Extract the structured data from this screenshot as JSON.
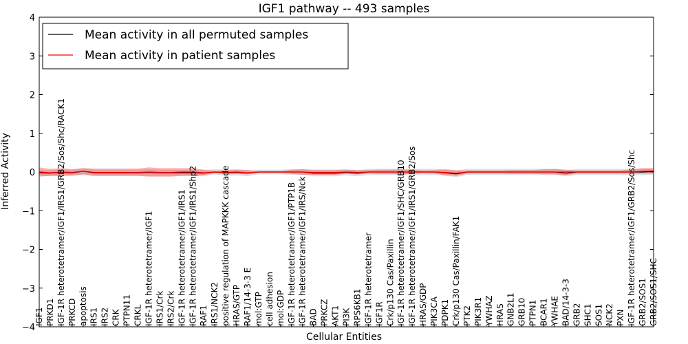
{
  "chart_data": {
    "type": "line",
    "title": "IGF1 pathway -- 493 samples",
    "xlabel": "Cellular Entities",
    "ylabel": "Inferred Activity",
    "ylim": [
      -4,
      4
    ],
    "yticks": [
      -4,
      -3,
      -2,
      -1,
      0,
      1,
      2,
      3,
      4
    ],
    "ytick_labels": [
      "−4",
      "−3",
      "−2",
      "−1",
      "0",
      "1",
      "2",
      "3",
      "4"
    ],
    "legend_position": "top-left",
    "categories": [
      "IGF1",
      "PRKD1",
      "IGF-1R heterotetramer/IGF1/IRS1/GRB2/Sos/Shc/RACK1",
      "PRKCD",
      "apoptosis",
      "IRS1",
      "IRS2",
      "CRK",
      "PTPN11",
      "CRKL",
      "IGF-1R heterotetramer/IGF1",
      "IRS1/Crk",
      "IRS2/Crk",
      "IGF-1R heterotetramer/IGF1/IRS1",
      "IGF-1R heterotetramer/IGF1/IRS1/Shp2",
      "RAF1",
      "IRS1/NCK2",
      "positive regulation of MAPKKK cascade",
      "HRAS/GTP",
      "RAF1/14-3-3 E",
      "mol:GTP",
      "cell adhesion",
      "mol:GDP",
      "IGF-1R heterotetramer/IGF1/PTP1B",
      "IGF-1R heterotetramer/IGF1/IRS/Nck",
      "BAD",
      "PRKCZ",
      "AKT1",
      "PI3K",
      "RPS6KB1",
      "IGF-1R heterotetramer",
      "IGF1R",
      "Crk/p130 Cas/Paxillin",
      "IGF-1R heterotetramer/IGF1/SHC/GRB10",
      "IGF-1R heterotetramer/IGF1/IRS1/GRB2/Sos",
      "HRAS/GDP",
      "PIK3CA",
      "PDPK1",
      "Crk/p130 Cas/Paxillin/FAK1",
      "PTK2",
      "PIK3R1",
      "YWHAZ",
      "HRAS",
      "GNB2L1",
      "GRB10",
      "PTPN1",
      "BCAR1",
      "YWHAE",
      "BAD/14-3-3",
      "GRB2",
      "SHC1",
      "SOS1",
      "NCK2",
      "PXN",
      "IGF-1R heterotetramer/IGF1/GRB2/Sos/Shc",
      "GRB2/SOS1",
      "GRB2/SOS1/SHC"
    ],
    "series": [
      {
        "name": "Mean activity in all permuted samples",
        "color": "#000000",
        "values": [
          -0.02,
          -0.03,
          -0.01,
          -0.02,
          0.02,
          -0.02,
          -0.02,
          -0.02,
          -0.02,
          -0.02,
          -0.01,
          -0.02,
          -0.02,
          -0.02,
          -0.02,
          -0.03,
          0.0,
          -0.02,
          -0.01,
          -0.03,
          0.0,
          0.0,
          0.0,
          0.0,
          0.0,
          -0.03,
          -0.03,
          -0.03,
          -0.01,
          -0.03,
          0.0,
          0.0,
          0.0,
          0.0,
          0.0,
          0.0,
          0.0,
          -0.02,
          -0.05,
          0.0,
          0.0,
          0.0,
          0.0,
          0.0,
          0.0,
          0.0,
          0.0,
          0.0,
          -0.03,
          0.0,
          0.0,
          0.0,
          0.0,
          0.0,
          0.0,
          0.0,
          0.01
        ],
        "lower": [
          -0.1,
          -0.11,
          -0.1,
          -0.1,
          -0.08,
          -0.1,
          -0.1,
          -0.1,
          -0.1,
          -0.1,
          -0.1,
          -0.1,
          -0.1,
          -0.1,
          -0.1,
          -0.11,
          -0.07,
          -0.1,
          -0.09,
          -0.11,
          -0.06,
          -0.06,
          -0.06,
          -0.07,
          -0.07,
          -0.11,
          -0.11,
          -0.11,
          -0.09,
          -0.11,
          -0.08,
          -0.08,
          -0.08,
          -0.08,
          -0.08,
          -0.08,
          -0.08,
          -0.1,
          -0.13,
          -0.08,
          -0.08,
          -0.08,
          -0.08,
          -0.08,
          -0.08,
          -0.08,
          -0.08,
          -0.08,
          -0.11,
          -0.08,
          -0.08,
          -0.08,
          -0.08,
          -0.08,
          -0.08,
          -0.08,
          -0.07
        ],
        "upper": [
          0.06,
          0.05,
          0.07,
          0.06,
          0.1,
          0.06,
          0.06,
          0.06,
          0.06,
          0.06,
          0.07,
          0.06,
          0.06,
          0.06,
          0.06,
          0.05,
          0.07,
          0.06,
          0.07,
          0.05,
          0.06,
          0.06,
          0.06,
          0.07,
          0.07,
          0.05,
          0.05,
          0.05,
          0.07,
          0.05,
          0.08,
          0.08,
          0.08,
          0.08,
          0.08,
          0.08,
          0.08,
          0.06,
          0.03,
          0.08,
          0.08,
          0.08,
          0.08,
          0.08,
          0.08,
          0.08,
          0.08,
          0.08,
          0.05,
          0.08,
          0.08,
          0.08,
          0.08,
          0.08,
          0.08,
          0.08,
          0.09
        ]
      },
      {
        "name": "Mean activity in patient samples",
        "color": "#ff0000",
        "values": [
          0.0,
          -0.02,
          0.0,
          -0.01,
          0.02,
          -0.01,
          -0.01,
          -0.01,
          -0.01,
          -0.01,
          0.0,
          -0.01,
          -0.01,
          0.0,
          0.0,
          -0.02,
          0.0,
          -0.01,
          0.0,
          -0.02,
          0.0,
          0.0,
          0.0,
          0.0,
          0.0,
          -0.01,
          -0.01,
          -0.01,
          0.0,
          -0.01,
          0.0,
          0.0,
          0.0,
          0.0,
          0.0,
          0.0,
          0.0,
          -0.01,
          -0.03,
          0.0,
          0.0,
          0.0,
          0.0,
          0.0,
          0.0,
          0.0,
          0.0,
          0.0,
          0.0,
          0.0,
          0.0,
          0.0,
          0.0,
          0.0,
          0.0,
          0.02,
          0.03
        ],
        "lower": [
          -0.12,
          -0.1,
          -0.1,
          -0.09,
          -0.06,
          -0.1,
          -0.1,
          -0.1,
          -0.1,
          -0.1,
          -0.12,
          -0.12,
          -0.12,
          -0.1,
          -0.1,
          -0.08,
          -0.03,
          -0.05,
          -0.05,
          -0.06,
          -0.02,
          -0.02,
          -0.02,
          -0.05,
          -0.07,
          -0.07,
          -0.07,
          -0.07,
          -0.05,
          -0.06,
          -0.04,
          -0.05,
          -0.05,
          -0.06,
          -0.05,
          -0.03,
          -0.04,
          -0.08,
          -0.1,
          -0.04,
          -0.04,
          -0.04,
          -0.04,
          -0.05,
          -0.05,
          -0.05,
          -0.06,
          -0.06,
          -0.08,
          -0.04,
          -0.04,
          -0.04,
          -0.04,
          -0.04,
          -0.04,
          -0.04,
          -0.04
        ],
        "upper": [
          0.12,
          0.08,
          0.1,
          0.07,
          0.1,
          0.09,
          0.09,
          0.09,
          0.09,
          0.09,
          0.12,
          0.1,
          0.1,
          0.1,
          0.1,
          0.06,
          0.03,
          0.05,
          0.06,
          0.05,
          0.02,
          0.02,
          0.02,
          0.06,
          0.07,
          0.06,
          0.06,
          0.06,
          0.06,
          0.05,
          0.05,
          0.06,
          0.06,
          0.07,
          0.06,
          0.04,
          0.05,
          0.07,
          0.05,
          0.04,
          0.04,
          0.04,
          0.04,
          0.05,
          0.05,
          0.05,
          0.07,
          0.08,
          0.06,
          0.04,
          0.04,
          0.04,
          0.04,
          0.04,
          0.07,
          0.1,
          0.1
        ]
      }
    ]
  }
}
